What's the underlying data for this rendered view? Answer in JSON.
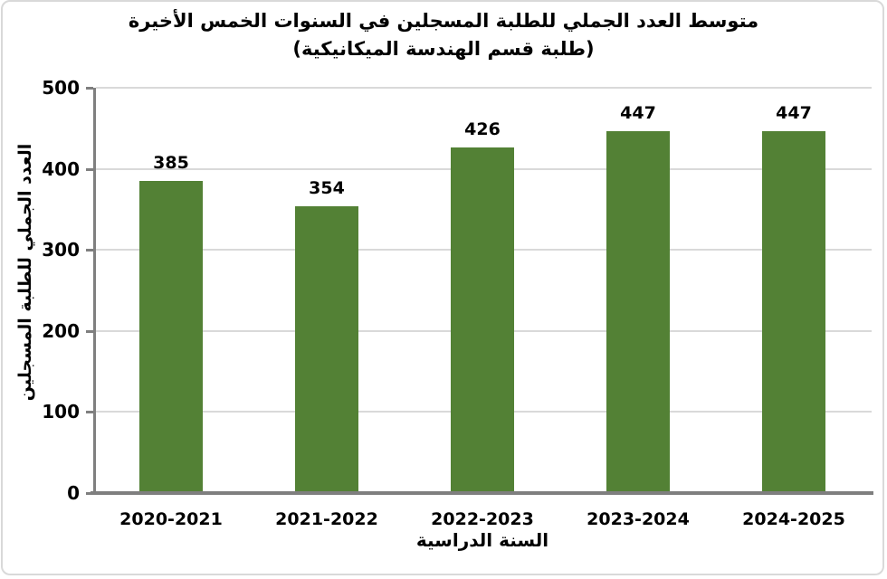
{
  "chart_data": {
    "type": "bar",
    "title": "متوسط العدد الجملي للطلبة المسجلين في السنوات الخمس الأخيرة",
    "subtitle": "(طلبة قسم الهندسة الميكانيكية)",
    "categories": [
      "2020-2021",
      "2021-2022",
      "2022-2023",
      "2023-2024",
      "2024-2025"
    ],
    "values": [
      385,
      354,
      426,
      447,
      447
    ],
    "xlabel": "السنة الدراسية",
    "ylabel": "العدد الجملي للطلبة المسجلين",
    "ylim": [
      0,
      500
    ],
    "yticks": [
      0,
      100,
      200,
      300,
      400,
      500
    ],
    "grid": true,
    "legend_position": "none",
    "colors": {
      "bar": "#538135",
      "gridline": "#D9D9D9",
      "axis": "#7F7F7F",
      "text": "#000000",
      "frame_border": "#D9D9D9"
    }
  }
}
